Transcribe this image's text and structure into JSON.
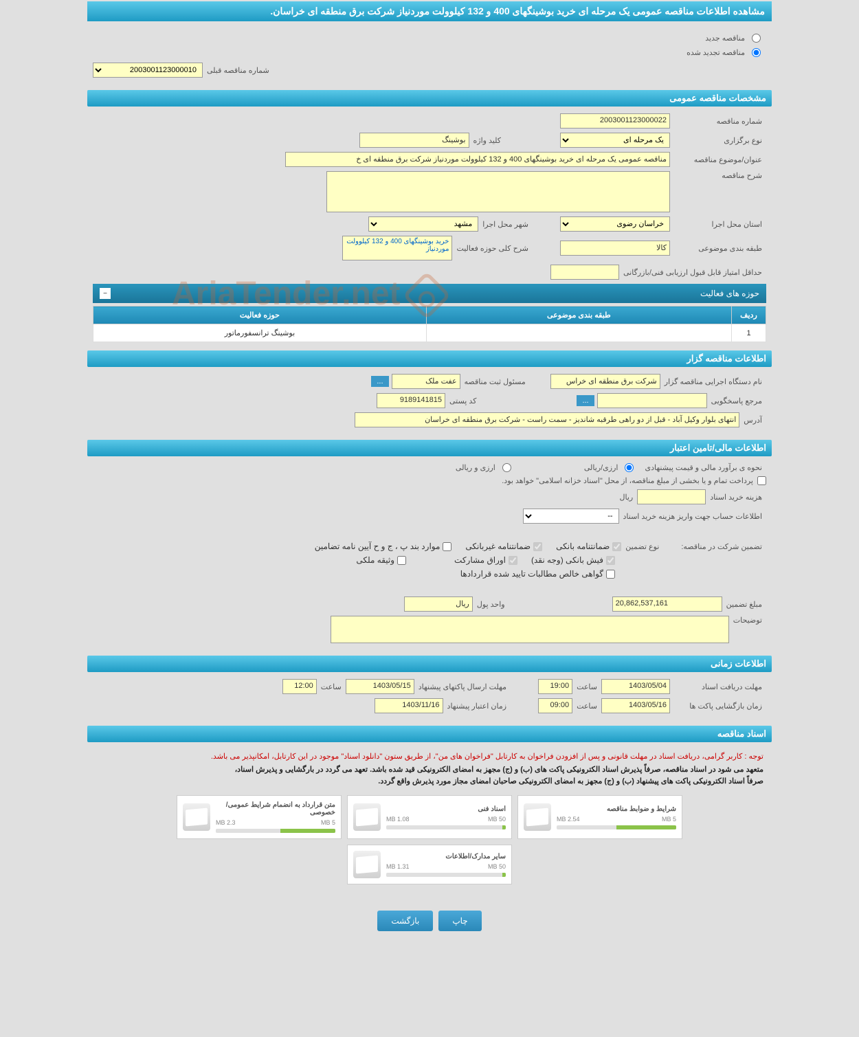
{
  "page_title": "مشاهده اطلاعات مناقصه عمومی یک مرحله ای خرید بوشینگهای 400 و 132 کیلوولت موردنیاز شرکت برق منطقه ای خراسان.",
  "top_radio": {
    "new_label": "مناقصه جدید",
    "renewed_label": "مناقصه تجدید شده",
    "selected": "renewed"
  },
  "prev_tender": {
    "label": "شماره مناقصه قبلی",
    "value": "2003001123000010"
  },
  "section_general": "مشخصات مناقصه عمومی",
  "general": {
    "tender_no_label": "شماره مناقصه",
    "tender_no": "2003001123000022",
    "type_label": "نوع برگزاری",
    "type_value": "یک مرحله ای",
    "keyword_label": "کلید واژه",
    "keyword_value": "بوشینگ",
    "subject_label": "عنوان/موضوع مناقصه",
    "subject_value": "مناقصه عمومی یک مرحله ای خرید بوشینگهای 400 و 132 کیلوولت موردنیاز شرکت برق منطقه ای خ",
    "desc_label": "شرح مناقصه",
    "province_label": "استان محل اجرا",
    "province_value": "خراسان رضوی",
    "city_label": "شهر محل اجرا",
    "city_value": "مشهد",
    "class_label": "طبقه بندی موضوعی",
    "class_value": "کالا",
    "activity_label": "شرح کلی حوزه فعالیت",
    "activity_value": "خرید بوشینگهای 400 و 132 کیلوولت موردنیاز",
    "min_score_label": "حداقل امتیاز قابل قبول ارزیابی فنی/بازرگانی"
  },
  "activity_table": {
    "title": "حوزه های فعالیت",
    "col_row": "ردیف",
    "col_class": "طبقه بندی موضوعی",
    "col_field": "حوزه فعالیت",
    "rows": [
      {
        "idx": "1",
        "class": "",
        "field": "بوشینگ ترانسفورماتور"
      }
    ]
  },
  "section_owner": "اطلاعات مناقصه گزار",
  "owner": {
    "org_label": "نام دستگاه اجرایی مناقصه گزار",
    "org_value": "شرکت برق منطقه ای خراس",
    "reg_person_label": "مسئول ثبت مناقصه",
    "reg_person_value": "عفت ملک",
    "more_btn": "...",
    "contact_label": "مرجع پاسخگویی",
    "postal_label": "کد پستی",
    "postal_value": "9189141815",
    "address_label": "آدرس",
    "address_value": "انتهای بلوار وکیل آباد - قبل از دو راهی طرقبه شاندیز - سمت راست - شرکت برق منطقه ای خراسان"
  },
  "section_finance": "اطلاعات مالی/تامین اعتبار",
  "finance": {
    "price_method_label": "نحوه ی برآورد مالی و قیمت پیشنهادی",
    "opt_rial": "ارزی/ریالی",
    "opt_arz": "ارزی و ریالی",
    "treasury_note": "پرداخت تمام و یا بخشی از مبلغ مناقصه، از محل \"اسناد خزانه اسلامی\" خواهد بود.",
    "doc_cost_label": "هزینه خرید اسناد",
    "doc_cost_unit": "ریال",
    "account_label": "اطلاعات حساب جهت واریز هزینه خرید اسناد",
    "account_value": "--",
    "guarantee_label": "تضمین شرکت در مناقصه:",
    "guarantee_type_label": "نوع تضمین",
    "g_bank": "ضمانتنامه بانکی",
    "g_nonbank": "ضمانتنامه غیربانکی",
    "g_rules": "موارد بند پ ، ج و ح آیین نامه تضامین",
    "g_fish": "فیش بانکی (وجه نقد)",
    "g_stock": "اوراق مشارکت",
    "g_property": "وثیقه ملکی",
    "g_demands": "گواهی خالص مطالبات تایید شده قراردادها",
    "amount_label": "مبلغ تضمین",
    "amount_value": "20,862,537,161",
    "currency_label": "واحد پول",
    "currency_value": "ریال",
    "notes_label": "توضیحات"
  },
  "section_time": "اطلاعات زمانی",
  "time": {
    "receive_label": "مهلت دریافت اسناد",
    "receive_date": "1403/05/04",
    "receive_time_label": "ساعت",
    "receive_time": "19:00",
    "send_label": "مهلت ارسال پاکتهای پیشنهاد",
    "send_date": "1403/05/15",
    "send_time_label": "ساعت",
    "send_time": "12:00",
    "open_label": "زمان بازگشایی پاکت ها",
    "open_date": "1403/05/16",
    "open_time_label": "ساعت",
    "open_time": "09:00",
    "validity_label": "زمان اعتبار پیشنهاد",
    "validity_date": "1403/11/16"
  },
  "section_docs": "اسناد مناقصه",
  "docs": {
    "notice1": "توجه : کاربر گرامی، دریافت اسناد در مهلت قانونی و پس از افزودن فراخوان به کارتابل \"فراخوان های من\"، از طریق ستون \"دانلود اسناد\" موجود در این کارتابل، امکانپذیر می باشد.",
    "notice2": "متعهد می شود در اسناد مناقصه، صرفاً پذیرش اسناد الکترونیکی پاکت های (ب) و (ج) مجهز به امضای الکترونیکی قید شده باشد. تعهد می گردد در بارگشایی و پذیرش اسناد،",
    "notice3": "صرفاً اسناد الکترونیکی پاکت های پیشنهاد (ب) و (ج) مجهز به امضای الکترونیکی صاحبان امضای مجاز مورد پذیرش واقع گردد.",
    "items": [
      {
        "title": "شرایط و ضوابط مناقصه",
        "size": "2.54 MB",
        "max": "5 MB",
        "pct": 50
      },
      {
        "title": "اسناد فنی",
        "size": "1.08 MB",
        "max": "50 MB",
        "pct": 3
      },
      {
        "title": "متن قرارداد به انضمام شرایط عمومی/خصوصی",
        "size": "2.3 MB",
        "max": "5 MB",
        "pct": 46
      },
      {
        "title": "سایر مدارک/اطلاعات",
        "size": "1.31 MB",
        "max": "50 MB",
        "pct": 3
      }
    ]
  },
  "buttons": {
    "print": "چاپ",
    "back": "بازگشت"
  }
}
